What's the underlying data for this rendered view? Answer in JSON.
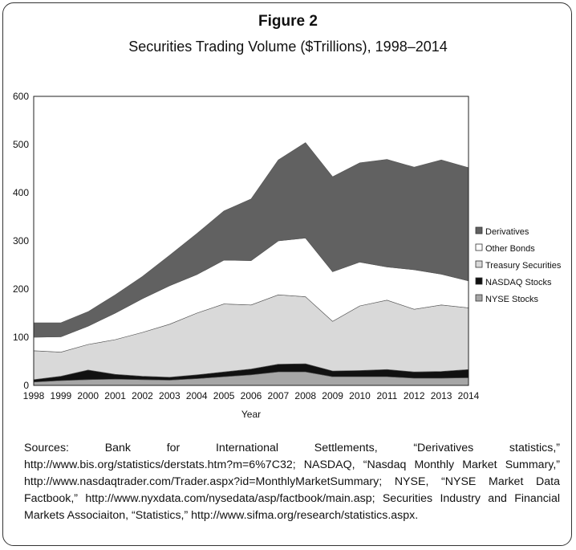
{
  "figure_label": "Figure 2",
  "title": "Securities Trading Volume ($Trillions), 1998–2014",
  "sources": "Sources: Bank for International Settlements, “Derivatives statistics,” http://www.bis.org/statistics/derstats.htm?m=6%7C32; NASDAQ, “Nasdaq Monthly Market Summary,” http://www.nasdaqtrader.com/Trader.aspx?id=MonthlyMarketSummary; NYSE, “NYSE Market Data Factbook,” http://www.nyxdata.com/nysedata/asp/factbook/main.asp; Securities Industry and Financial Markets Associaiton, “Statistics,” http://www.sifma.org/research/statistics.aspx.",
  "chart_data": {
    "type": "area",
    "stacked": true,
    "xlabel": "Year",
    "ylabel": "",
    "ylim": [
      0,
      600
    ],
    "yticks": [
      0,
      100,
      200,
      300,
      400,
      500,
      600
    ],
    "grid": false,
    "legend_position": "right",
    "x": [
      1998,
      1999,
      2000,
      2001,
      2002,
      2003,
      2004,
      2005,
      2006,
      2007,
      2008,
      2009,
      2010,
      2011,
      2012,
      2013,
      2014
    ],
    "series": [
      {
        "name": "NYSE Stocks",
        "color": "#a6a6a6",
        "values": [
          7,
          10,
          12,
          13,
          12,
          11,
          14,
          18,
          22,
          28,
          28,
          18,
          18,
          18,
          15,
          15,
          16
        ]
      },
      {
        "name": "NASDAQ Stocks",
        "color": "#111111",
        "values": [
          5,
          9,
          20,
          10,
          7,
          6,
          8,
          10,
          12,
          16,
          17,
          12,
          13,
          15,
          13,
          14,
          17
        ]
      },
      {
        "name": "Treasury Securities",
        "color": "#d9d9d9",
        "values": [
          60,
          50,
          53,
          72,
          91,
          110,
          128,
          141,
          133,
          144,
          139,
          103,
          134,
          144,
          130,
          138,
          128
        ]
      },
      {
        "name": "Other Bonds",
        "color": "#ffffff",
        "values": [
          28,
          32,
          38,
          55,
          70,
          80,
          80,
          91,
          92,
          112,
          122,
          103,
          91,
          69,
          82,
          64,
          56
        ]
      },
      {
        "name": "Derivatives",
        "color": "#616161",
        "values": [
          30,
          29,
          30,
          38,
          46,
          63,
          85,
          102,
          128,
          168,
          198,
          197,
          206,
          223,
          213,
          237,
          235
        ]
      }
    ],
    "legend_order": [
      "Derivatives",
      "Other Bonds",
      "Treasury Securities",
      "NASDAQ Stocks",
      "NYSE Stocks"
    ]
  }
}
